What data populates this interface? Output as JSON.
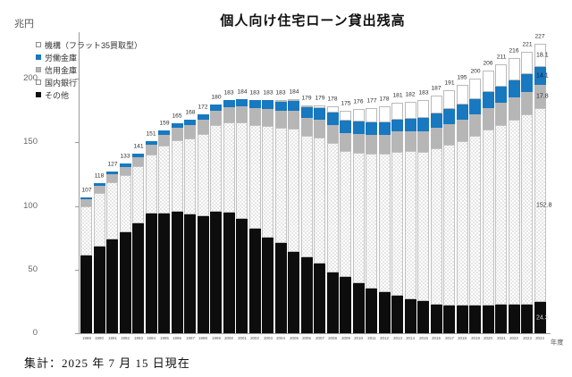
{
  "title": "個人向け住宅ローン貸出残高",
  "y_unit_label": "兆円",
  "x_axis_suffix": "年度",
  "footer": "集計：2025 年 7 月 15 日現在",
  "legend": [
    {
      "label": "機構（フラット35買取型）",
      "swatch": "white"
    },
    {
      "label": "労働金庫",
      "swatch": "blue"
    },
    {
      "label": "信用金庫",
      "swatch": "gray"
    },
    {
      "label": "国内銀行",
      "swatch": "dots"
    },
    {
      "label": "その他",
      "swatch": "black"
    }
  ],
  "colors": {
    "blue": "#1878c0",
    "gray": "#b6b6b6",
    "black": "#0d0d0d",
    "axis": "#9a9a9a",
    "dot_pattern": "#cacaca"
  },
  "chart_data": {
    "type": "bar",
    "stacked": true,
    "title": "個人向け住宅ローン貸出残高",
    "ylabel": "兆円",
    "xlabel": "年度",
    "ylim": [
      0,
      235
    ],
    "yticks": [
      0,
      50,
      100,
      150,
      200
    ],
    "grid": false,
    "legend_position": "upper-left",
    "x": [
      1989,
      1990,
      1991,
      1992,
      1993,
      1994,
      1995,
      1996,
      1997,
      1998,
      1999,
      2000,
      2001,
      2002,
      2003,
      2004,
      2005,
      2006,
      2007,
      2008,
      2009,
      2010,
      2011,
      2012,
      2013,
      2014,
      2015,
      2016,
      2017,
      2018,
      2019,
      2020,
      2021,
      2022,
      2023,
      2024
    ],
    "totals": [
      107,
      118,
      127,
      133,
      141,
      151,
      159,
      165,
      168,
      172,
      180,
      183,
      184,
      183,
      183,
      183,
      184,
      179,
      179,
      178,
      175,
      176,
      177,
      178,
      181,
      182,
      183,
      187,
      191,
      195,
      200,
      206,
      211,
      216,
      221,
      227
    ],
    "series": [
      {
        "name": "その他",
        "style": "black",
        "values": [
          61,
          68,
          74,
          79,
          86,
          94,
          94,
          95.5,
          93,
          92,
          95.5,
          95,
          90,
          82,
          75,
          71,
          64,
          59.5,
          54.5,
          48,
          44,
          39.6,
          35.4,
          32,
          29.7,
          26.9,
          25.5,
          22.6,
          21.9,
          21.9,
          21.9,
          21.9,
          22.6,
          22.6,
          22.6,
          24.3
        ]
      },
      {
        "name": "国内銀行",
        "style": "dots",
        "values": [
          39,
          42.3,
          44.6,
          44.9,
          45.2,
          46.5,
          53.1,
          56.2,
          60.3,
          64.4,
          68,
          70.5,
          75.5,
          81.5,
          87.5,
          90.5,
          97,
          95.5,
          99,
          101.5,
          99,
          102.4,
          105.6,
          109,
          113.1,
          116.1,
          117,
          122.9,
          126.1,
          129.1,
          133.1,
          138.1,
          141.1,
          145.2,
          149.3,
          152.8
        ]
      },
      {
        "name": "信用金庫",
        "style": "gray",
        "values": [
          5,
          5.5,
          6,
          6.5,
          7,
          7.5,
          8.5,
          9.5,
          10.5,
          11,
          11.5,
          12,
          12.5,
          13,
          13.5,
          13.5,
          14,
          14,
          14,
          14,
          14.5,
          14.5,
          15,
          15,
          15.5,
          15.5,
          16,
          16,
          16.5,
          16.5,
          17,
          17,
          17.3,
          17.5,
          17.6,
          17.8
        ]
      },
      {
        "name": "労働金庫",
        "style": "blue",
        "values": [
          2,
          2.2,
          2.4,
          2.6,
          2.8,
          3,
          3.4,
          3.8,
          4.2,
          4.6,
          5,
          5.5,
          6,
          6.5,
          7,
          7.5,
          8,
          8.5,
          9,
          9.5,
          9.5,
          9.5,
          9.5,
          9.5,
          9.7,
          10,
          10.5,
          11,
          11.5,
          12,
          12,
          12.5,
          13,
          13.4,
          13.8,
          14.1
        ]
      },
      {
        "name": "機構（フラット35買取型）",
        "style": "white",
        "values": [
          0,
          0,
          0,
          0,
          0,
          0,
          0,
          0,
          0,
          0,
          0,
          0,
          0,
          0,
          0,
          0.5,
          1,
          1.5,
          2.5,
          5,
          8,
          10,
          11.5,
          12.5,
          13,
          13.5,
          14,
          14.5,
          15,
          15.5,
          16,
          16.5,
          17,
          17.3,
          17.7,
          18.1
        ]
      }
    ],
    "annotations": [
      {
        "bar": 35,
        "series": 4,
        "text": "18.1"
      },
      {
        "bar": 35,
        "series": 3,
        "text": "14.1",
        "tone": "on-blue"
      },
      {
        "bar": 35,
        "series": 2,
        "text": "17.8"
      },
      {
        "bar": 35,
        "series": 1,
        "text": "152.8",
        "tone": "halo"
      },
      {
        "bar": 35,
        "series": 0,
        "text": "24.3",
        "tone": "light"
      }
    ]
  }
}
